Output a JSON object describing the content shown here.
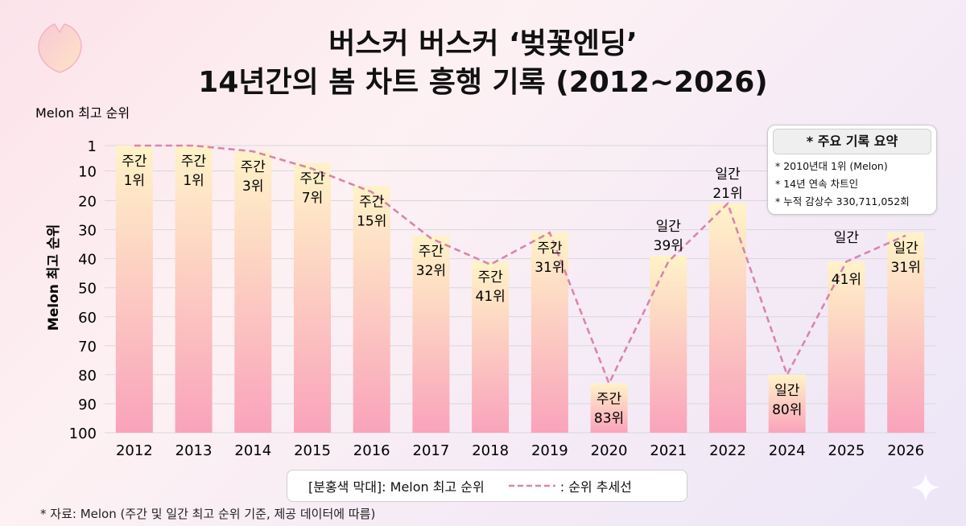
{
  "title": {
    "line1": "버스커 버스커 ‘벚꽃엔딩’",
    "line2": "14년간의 봄 차트 흥행 기록 (2012~2026)"
  },
  "chart_data": {
    "type": "bar",
    "top_label": "Melon 최고 순위",
    "ylabel": "Melon 최고 순위",
    "y_ticks": [
      1,
      10,
      20,
      30,
      40,
      50,
      60,
      70,
      80,
      90,
      100
    ],
    "ylim": [
      1,
      100
    ],
    "y_inverted": true,
    "categories": [
      "2012",
      "2013",
      "2014",
      "2015",
      "2016",
      "2017",
      "2018",
      "2019",
      "2020",
      "2021",
      "2022",
      "2024",
      "2025",
      "2026"
    ],
    "values": [
      1,
      1,
      3,
      7,
      15,
      32,
      41,
      31,
      83,
      39,
      21,
      80,
      41,
      31
    ],
    "chart_types": [
      "주간",
      "주간",
      "주간",
      "주간",
      "주간",
      "주간",
      "주간",
      "주간",
      "주간",
      "일간",
      "일간",
      "일간",
      "일간",
      "일간"
    ],
    "rank_labels": [
      "1위",
      "1위",
      "3위",
      "7위",
      "15위",
      "32위",
      "41위",
      "31위",
      "83위",
      "39위",
      "21위",
      "80위",
      "41위",
      "31위"
    ],
    "label_placement": [
      "inside",
      "inside",
      "inside",
      "inside",
      "inside",
      "inside",
      "inside",
      "inside",
      "inside",
      "above",
      "above",
      "inside",
      "split",
      "inside"
    ],
    "series": [
      {
        "name": "[분홍색 막대]: Melon 최고 순위",
        "style": "bar"
      },
      {
        "name": ": 순위 추세선",
        "style": "dashed-line",
        "values": [
          1,
          1,
          3,
          9,
          17,
          33,
          42,
          31,
          83,
          41,
          21,
          80,
          41,
          32
        ]
      }
    ],
    "colors": {
      "bar_top": "#fff3c8",
      "bar_bottom": "#f9a3bb",
      "trend": "#d985ae",
      "grid": "#d8d8d8"
    }
  },
  "summary": {
    "title": "* 주요 기록 요약",
    "lines": [
      "* 2010년대 1위 (Melon)",
      "* 14년 연속 차트인",
      "* 누적 감상수 330,711,052회"
    ]
  },
  "legend": {
    "bar_label": "[분홍색 막대]: Melon 최고 순위",
    "line_label": ": 순위 추세선"
  },
  "source": "* 자료: Melon (주간 및 일간 최고 순위 기준, 제공 데이터에 따름)",
  "icons": [
    "cherry-blossom-petal-icon",
    "sparkle-icon"
  ]
}
